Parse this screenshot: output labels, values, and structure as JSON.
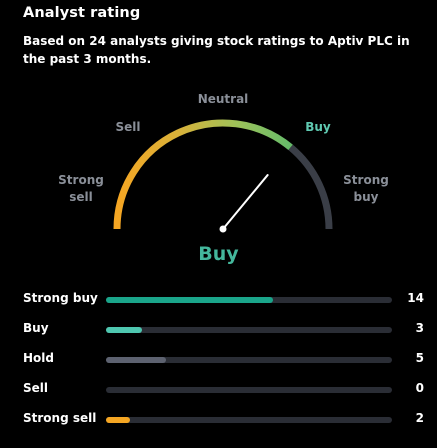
{
  "widget": {
    "title": "Analyst rating",
    "subtitle": "Based on 24 analysts giving stock ratings to Aptiv PLC in the past 3 months."
  },
  "gauge": {
    "labels": {
      "strong_sell": "Strong sell",
      "sell": "Sell",
      "neutral": "Neutral",
      "buy": "Buy",
      "strong_buy": "Strong buy"
    },
    "active": "buy",
    "verdict": "Buy",
    "needle_value": 0.72,
    "colors": {
      "low": "#f5a623",
      "mid": "#8bc34a",
      "high": "#66bb6a",
      "inactive": "#3a3e47",
      "needle": "#ffffff",
      "active_label": "#5fc9b1"
    }
  },
  "breakdown": {
    "max": 24,
    "rows": [
      {
        "label": "Strong buy",
        "count": "14",
        "value": 14,
        "color": "#1aa58a"
      },
      {
        "label": "Buy",
        "count": "3",
        "value": 3,
        "color": "#4fc7b0"
      },
      {
        "label": "Hold",
        "count": "5",
        "value": 5,
        "color": "#5d6270"
      },
      {
        "label": "Sell",
        "count": "0",
        "value": 0,
        "color": "#2a2d35"
      },
      {
        "label": "Strong sell",
        "count": "2",
        "value": 2,
        "color": "#f5a623"
      }
    ]
  }
}
